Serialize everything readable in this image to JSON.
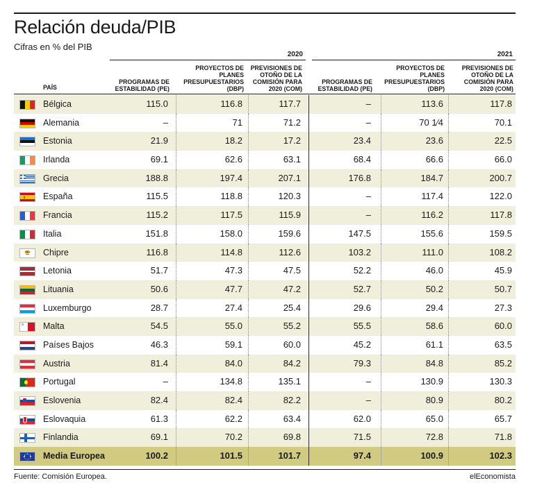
{
  "title": "Relación deuda/PIB",
  "subtitle": "Cifras en % del PIB",
  "source": "Fuente: Comisión Europea.",
  "brand": "elEconomista",
  "chart_data": {
    "type": "table",
    "years": [
      "2020",
      "2021"
    ],
    "country_header": "PAÍS",
    "columns": [
      "PROGRAMAS DE ESTABILIDAD (PE)",
      "PROYECTOS DE PLANES PRESUPUESTARIOS (DBP)",
      "PREVISIONES DE OTOÑO DE LA COMISIÓN PARA 2020 (COM)",
      "PROGRAMAS DE ESTABILIDAD (PE)",
      "PROYECTOS DE PLANES PRESUPUESTARIOS (DBP)",
      "PREVISIONES DE OTOÑO DE LA COMISIÓN PARA 2020 (COM)"
    ],
    "rows": [
      {
        "country": "Bélgica",
        "flag": "belgium-flag",
        "values": [
          "115.0",
          "116.8",
          "117.7",
          "–",
          "113.6",
          "117.8"
        ]
      },
      {
        "country": "Alemania",
        "flag": "germany-flag",
        "values": [
          "–",
          "71",
          "71.2",
          "–",
          "70 1/4",
          "70.1"
        ]
      },
      {
        "country": "Estonia",
        "flag": "estonia-flag",
        "values": [
          "21.9",
          "18.2",
          "17.2",
          "23.4",
          "23.6",
          "22.5"
        ]
      },
      {
        "country": "Irlanda",
        "flag": "ireland-flag",
        "values": [
          "69.1",
          "62.6",
          "63.1",
          "68.4",
          "66.6",
          "66.0"
        ]
      },
      {
        "country": "Grecia",
        "flag": "greece-flag",
        "values": [
          "188.8",
          "197.4",
          "207.1",
          "176.8",
          "184.7",
          "200.7"
        ]
      },
      {
        "country": "España",
        "flag": "spain-flag",
        "values": [
          "115.5",
          "118.8",
          "120.3",
          "–",
          "117.4",
          "122.0"
        ]
      },
      {
        "country": "Francia",
        "flag": "france-flag",
        "values": [
          "115.2",
          "117.5",
          "115.9",
          "–",
          "116.2",
          "117.8"
        ]
      },
      {
        "country": "Italia",
        "flag": "italy-flag",
        "values": [
          "151.8",
          "158.0",
          "159.6",
          "147.5",
          "155.6",
          "159.5"
        ]
      },
      {
        "country": "Chipre",
        "flag": "cyprus-flag",
        "values": [
          "116.8",
          "114.8",
          "112.6",
          "103.2",
          "111.0",
          "108.2"
        ]
      },
      {
        "country": "Letonia",
        "flag": "latvia-flag",
        "values": [
          "51.7",
          "47.3",
          "47.5",
          "52.2",
          "46.0",
          "45.9"
        ]
      },
      {
        "country": "Lituania",
        "flag": "lithuania-flag",
        "values": [
          "50.6",
          "47.7",
          "47.2",
          "52.7",
          "50.2",
          "50.7"
        ]
      },
      {
        "country": "Luxemburgo",
        "flag": "luxembourg-flag",
        "values": [
          "28.7",
          "27.4",
          "25.4",
          "29.6",
          "29.4",
          "27.3"
        ]
      },
      {
        "country": "Malta",
        "flag": "malta-flag",
        "values": [
          "54.5",
          "55.0",
          "55.2",
          "55.5",
          "58.6",
          "60.0"
        ]
      },
      {
        "country": "Países Bajos",
        "flag": "netherlands-flag",
        "values": [
          "46.3",
          "59.1",
          "60.0",
          "45.2",
          "61.1",
          "63.5"
        ]
      },
      {
        "country": "Austria",
        "flag": "austria-flag",
        "values": [
          "81.4",
          "84.0",
          "84.2",
          "79.3",
          "84.8",
          "85.2"
        ]
      },
      {
        "country": "Portugal",
        "flag": "portugal-flag",
        "values": [
          "–",
          "134.8",
          "135.1",
          "–",
          "130.9",
          "130.3"
        ]
      },
      {
        "country": "Eslovenia",
        "flag": "slovenia-flag",
        "values": [
          "82.4",
          "82.4",
          "82.2",
          "–",
          "80.9",
          "80.2"
        ]
      },
      {
        "country": "Eslovaquia",
        "flag": "slovakia-flag",
        "values": [
          "61.3",
          "62.2",
          "63.4",
          "62.0",
          "65.0",
          "65.7"
        ]
      },
      {
        "country": "Finlandia",
        "flag": "finland-flag",
        "values": [
          "69.1",
          "70.2",
          "69.8",
          "71.5",
          "72.8",
          "71.8"
        ]
      },
      {
        "country": "Media Europea",
        "flag": "eu-flag",
        "values": [
          "100.2",
          "101.5",
          "101.7",
          "97.4",
          "100.9",
          "102.3"
        ]
      }
    ]
  }
}
